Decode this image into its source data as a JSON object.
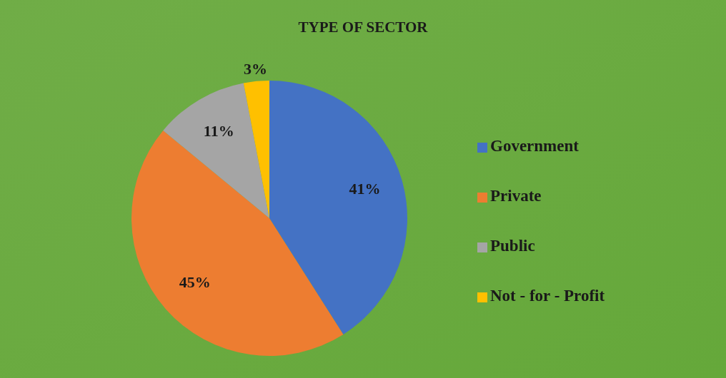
{
  "chart_data": {
    "type": "pie",
    "title": "TYPE OF SECTOR",
    "categories": [
      "Government",
      "Private",
      "Public",
      "Not - for - Profit"
    ],
    "values": [
      41,
      45,
      11,
      3
    ],
    "colors": [
      "#4472c4",
      "#ed7d31",
      "#a5a5a5",
      "#ffc000"
    ],
    "value_labels": [
      "41%",
      "45%",
      "11%",
      "3%"
    ],
    "legend": "right"
  }
}
